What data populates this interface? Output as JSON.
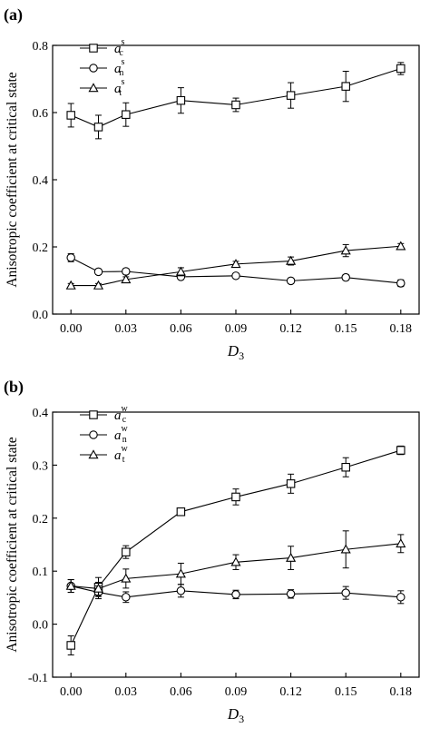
{
  "chart_data": [
    {
      "type": "line",
      "panel_label": "(a)",
      "xlabel": "D",
      "xlabel_sub": "3",
      "ylabel": "Anisotropic coefficient at critical state",
      "x": [
        0.0,
        0.015,
        0.03,
        0.06,
        0.09,
        0.12,
        0.15,
        0.18
      ],
      "xticks": [
        "0.00",
        "0.03",
        "0.06",
        "0.09",
        "0.12",
        "0.15",
        "0.18"
      ],
      "xtick_values": [
        0.0,
        0.03,
        0.06,
        0.09,
        0.12,
        0.15,
        0.18
      ],
      "yticks": [
        "0.0",
        "0.2",
        "0.4",
        "0.6",
        "0.8"
      ],
      "ytick_values": [
        0.0,
        0.2,
        0.4,
        0.6,
        0.8
      ],
      "xlim": [
        -0.01,
        0.19
      ],
      "ylim": [
        0.0,
        0.8
      ],
      "grid": false,
      "legend_position": "top-left",
      "series": [
        {
          "legend_base": "a",
          "legend_sup": "s",
          "legend_sub": "c",
          "marker": "square",
          "values": [
            0.592,
            0.557,
            0.594,
            0.636,
            0.623,
            0.651,
            0.678,
            0.731
          ],
          "errors": [
            0.035,
            0.035,
            0.035,
            0.038,
            0.02,
            0.038,
            0.045,
            0.018
          ]
        },
        {
          "legend_base": "a",
          "legend_sup": "s",
          "legend_sub": "n",
          "marker": "circle",
          "values": [
            0.168,
            0.126,
            0.127,
            0.111,
            0.114,
            0.099,
            0.109,
            0.092
          ],
          "errors": [
            0.012,
            0.008,
            0.008,
            0.008,
            0.006,
            0.008,
            0.008,
            0.01
          ]
        },
        {
          "legend_base": "a",
          "legend_sup": "s",
          "legend_sub": "t",
          "marker": "triangle",
          "values": [
            0.085,
            0.085,
            0.103,
            0.126,
            0.149,
            0.158,
            0.189,
            0.202
          ],
          "errors": [
            0.006,
            0.006,
            0.008,
            0.012,
            0.008,
            0.012,
            0.018,
            0.008
          ]
        }
      ]
    },
    {
      "type": "line",
      "panel_label": "(b)",
      "xlabel": "D",
      "xlabel_sub": "3",
      "ylabel": "Anisotropic coefficient at critical state",
      "x": [
        0.0,
        0.015,
        0.03,
        0.06,
        0.09,
        0.12,
        0.15,
        0.18
      ],
      "xticks": [
        "0.00",
        "0.03",
        "0.06",
        "0.09",
        "0.12",
        "0.15",
        "0.18"
      ],
      "xtick_values": [
        0.0,
        0.03,
        0.06,
        0.09,
        0.12,
        0.15,
        0.18
      ],
      "yticks": [
        "-0.1",
        "0.0",
        "0.1",
        "0.2",
        "0.3",
        "0.4"
      ],
      "ytick_values": [
        -0.1,
        0.0,
        0.1,
        0.2,
        0.3,
        0.4
      ],
      "xlim": [
        -0.01,
        0.19
      ],
      "ylim": [
        -0.1,
        0.4
      ],
      "grid": false,
      "legend_position": "top-left",
      "series": [
        {
          "legend_base": "a",
          "legend_sup": "w",
          "legend_sub": "c",
          "marker": "square",
          "values": [
            -0.04,
            0.07,
            0.136,
            0.212,
            0.24,
            0.265,
            0.296,
            0.328
          ],
          "errors": [
            0.018,
            0.018,
            0.012,
            0.006,
            0.015,
            0.018,
            0.018,
            0.008
          ]
        },
        {
          "legend_base": "a",
          "legend_sup": "w",
          "legend_sub": "n",
          "marker": "circle",
          "values": [
            0.072,
            0.06,
            0.051,
            0.063,
            0.056,
            0.057,
            0.059,
            0.051
          ],
          "errors": [
            0.012,
            0.012,
            0.01,
            0.012,
            0.008,
            0.008,
            0.012,
            0.012
          ]
        },
        {
          "legend_base": "a",
          "legend_sup": "w",
          "legend_sub": "t",
          "marker": "triangle",
          "values": [
            0.072,
            0.067,
            0.086,
            0.095,
            0.117,
            0.125,
            0.141,
            0.152
          ],
          "errors": [
            0.012,
            0.012,
            0.018,
            0.02,
            0.014,
            0.022,
            0.035,
            0.017
          ]
        }
      ]
    }
  ]
}
